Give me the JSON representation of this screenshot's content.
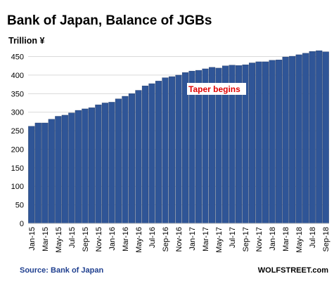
{
  "chart_data": {
    "type": "bar",
    "title": "Bank of Japan, Balance of JGBs",
    "unit_label": "Trillion ¥",
    "ylim": [
      0,
      470
    ],
    "y_ticks": [
      0,
      50,
      100,
      150,
      200,
      250,
      300,
      350,
      400,
      450
    ],
    "grid": true,
    "bar_color": "#2f5597",
    "categories": [
      "Jan-15",
      "Feb-15",
      "Mar-15",
      "Apr-15",
      "May-15",
      "Jun-15",
      "Jul-15",
      "Aug-15",
      "Sep-15",
      "Oct-15",
      "Nov-15",
      "Dec-15",
      "Jan-16",
      "Feb-16",
      "Mar-16",
      "Apr-16",
      "May-16",
      "Jun-16",
      "Jul-16",
      "Aug-16",
      "Sep-16",
      "Oct-16",
      "Nov-16",
      "Dec-16",
      "Jan-17",
      "Feb-17",
      "Mar-17",
      "Apr-17",
      "May-17",
      "Jun-17",
      "Jul-17",
      "Aug-17",
      "Sep-17",
      "Oct-17",
      "Nov-17",
      "Dec-17",
      "Jan-18",
      "Feb-18",
      "Mar-18",
      "Apr-18",
      "May-18",
      "Jun-18",
      "Jul-18",
      "Aug-18",
      "Sep-18"
    ],
    "values": [
      262,
      271,
      271,
      281,
      289,
      292,
      298,
      305,
      309,
      312,
      320,
      325,
      327,
      336,
      343,
      350,
      359,
      371,
      377,
      384,
      393,
      396,
      400,
      407,
      411,
      413,
      417,
      421,
      419,
      425,
      427,
      426,
      428,
      433,
      436,
      436,
      440,
      441,
      449,
      451,
      455,
      459,
      464,
      466,
      463
    ],
    "x_tick_labels": [
      "Jan-15",
      "Mar-15",
      "May-15",
      "Jul-15",
      "Sep-15",
      "Nov-15",
      "Jan-16",
      "Mar-16",
      "May-16",
      "Jul-16",
      "Sep-16",
      "Nov-16",
      "Jan-17",
      "Mar-17",
      "May-17",
      "Jul-17",
      "Sep-17",
      "Nov-17",
      "Jan-18",
      "Mar-18",
      "May-18",
      "Jul-18",
      "Sep-18"
    ],
    "annotation": "Taper begins",
    "source": "Source: Bank of Japan",
    "brand": "WOLFSTREET.com"
  }
}
